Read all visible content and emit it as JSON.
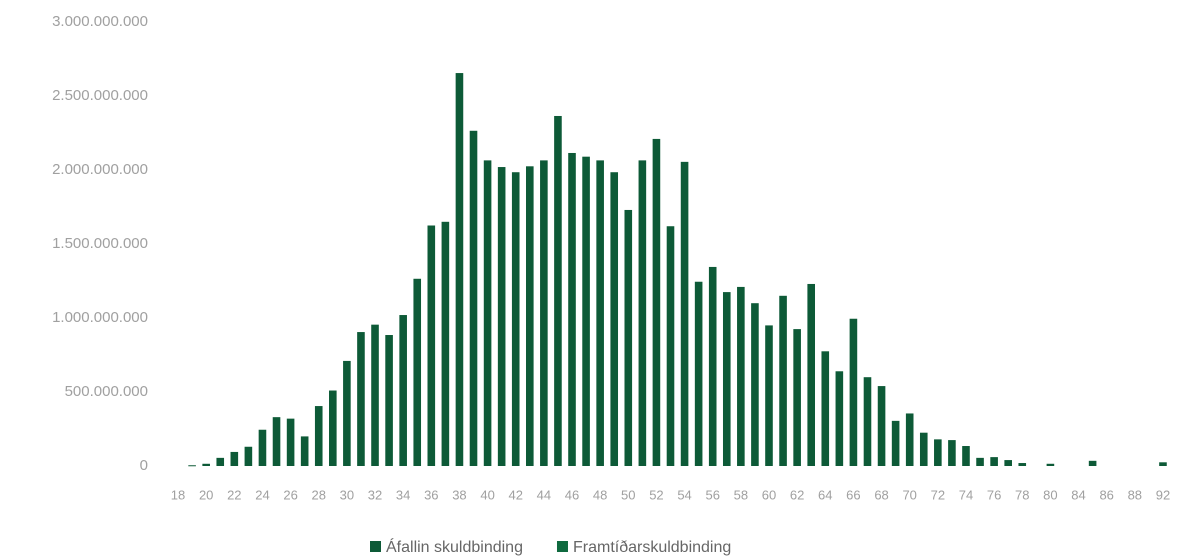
{
  "chart_data": {
    "type": "bar",
    "categories": [
      "18",
      null,
      "20",
      null,
      "22",
      null,
      "24",
      null,
      "26",
      null,
      "28",
      null,
      "30",
      null,
      "32",
      null,
      "34",
      null,
      "36",
      null,
      "38",
      null,
      "40",
      null,
      "42",
      null,
      "44",
      null,
      "46",
      null,
      "48",
      null,
      "50",
      null,
      "52",
      null,
      "54",
      null,
      "56",
      null,
      "58",
      null,
      "60",
      null,
      "62",
      null,
      "64",
      null,
      "66",
      null,
      "68",
      null,
      "70",
      null,
      "72",
      null,
      "74",
      null,
      "76",
      null,
      "78",
      null,
      "80",
      null,
      "84",
      null,
      "86",
      null,
      "88",
      null,
      "92"
    ],
    "series": [
      {
        "name": "Áfallin skuldbinding",
        "color": "#0d5a37",
        "values": [
          0,
          5000000,
          15000000,
          55000000,
          95000000,
          130000000,
          245000000,
          330000000,
          320000000,
          200000000,
          405000000,
          510000000,
          710000000,
          905000000,
          955000000,
          885000000,
          1020000000,
          1265000000,
          1625000000,
          1650000000,
          2655000000,
          2265000000,
          2065000000,
          2020000000,
          1985000000,
          2025000000,
          2065000000,
          2365000000,
          2115000000,
          2090000000,
          2065000000,
          1985000000,
          1730000000,
          2065000000,
          2210000000,
          1620000000,
          2055000000,
          1245000000,
          1345000000,
          1175000000,
          1210000000,
          1100000000,
          950000000,
          1150000000,
          925000000,
          1230000000,
          775000000,
          640000000,
          995000000,
          600000000,
          540000000,
          305000000,
          355000000,
          225000000,
          180000000,
          175000000,
          135000000,
          55000000,
          60000000,
          40000000,
          20000000,
          0,
          15000000,
          0,
          0,
          35000000,
          0,
          0,
          0,
          0,
          25000000
        ]
      },
      {
        "name": "Framtíðarskuldbinding",
        "color": "#0f6a3f",
        "values": [
          null,
          null,
          null,
          null,
          null,
          null,
          null,
          null,
          null,
          null,
          null,
          null,
          null,
          null,
          null,
          null,
          null,
          null,
          null,
          null,
          null,
          null,
          null,
          null,
          null,
          null,
          null,
          null,
          null,
          null,
          null,
          null,
          null,
          null,
          null,
          null,
          null,
          null,
          null,
          null,
          null,
          null,
          null,
          null,
          null,
          null,
          null,
          null,
          null,
          null,
          null,
          null,
          null,
          null,
          null,
          null,
          null,
          null,
          null,
          null,
          null,
          null,
          null,
          null,
          null,
          null,
          null,
          null,
          null,
          null,
          null
        ]
      }
    ],
    "stacked": true,
    "ylim": [
      0,
      3000000000
    ],
    "yticks": [
      0,
      {
        "value": 500000000,
        "label": "500.000.000"
      },
      {
        "value": 1000000000,
        "label": "1.000.000.000"
      },
      {
        "value": 1500000000,
        "label": "1.500.000.000"
      },
      {
        "value": 2000000000,
        "label": "2.000.000.000"
      },
      {
        "value": 2500000000,
        "label": "2.500.000.000"
      },
      {
        "value": 3000000000,
        "label": "3.000.000.000"
      }
    ],
    "grid": false
  }
}
